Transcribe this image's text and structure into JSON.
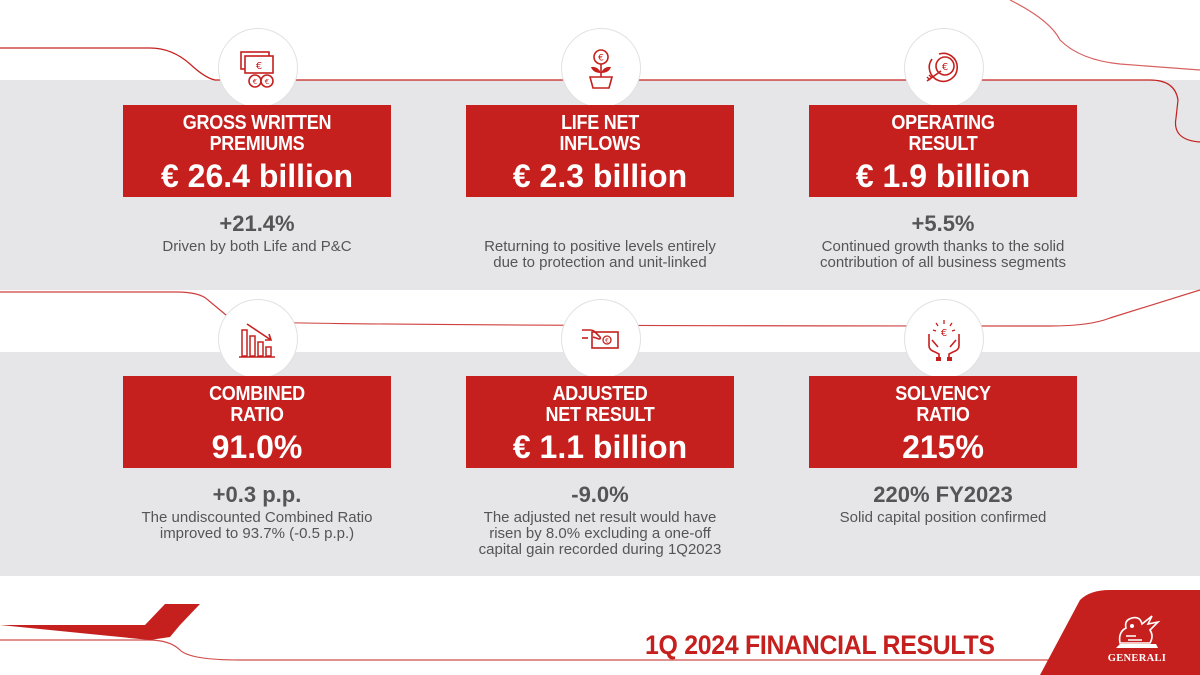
{
  "cards": [
    {
      "title": "GROSS WRITTEN\nPREMIUMS",
      "value": "€ 26.4 billion",
      "change": "+21.4%",
      "description": "Driven by both Life and P&C",
      "icon": "money-bills-coins-icon"
    },
    {
      "title": "LIFE NET\nINFLOWS",
      "value": "€ 2.3 billion",
      "change": "",
      "description": "Returning to positive levels entirely\ndue to protection and unit-linked",
      "icon": "euro-plant-pot-icon"
    },
    {
      "title": "OPERATING\nRESULT",
      "value": "€ 1.9 billion",
      "change": "+5.5%",
      "description": "Continued growth thanks to the solid\ncontribution of all business segments",
      "icon": "euro-target-arrow-icon"
    },
    {
      "title": "COMBINED\nRATIO",
      "value": "91.0%",
      "change": "+0.3 p.p.",
      "description": "The undiscounted Combined Ratio\nimproved to 93.7% (-0.5 p.p.)",
      "icon": "declining-bar-chart-icon"
    },
    {
      "title": "ADJUSTED\nNET RESULT",
      "value": "€ 1.1 billion",
      "change": "-9.0%",
      "description": "The adjusted net result would have\nrisen by 8.0% excluding a one-off\ncapital gain recorded during 1Q2023",
      "icon": "hand-euro-bill-icon"
    },
    {
      "title": "SOLVENCY\nRATIO",
      "value": "215%",
      "change": "220% FY2023",
      "description": "Solid capital position confirmed",
      "icon": "hands-protecting-euro-icon"
    }
  ],
  "footer": {
    "title": "1Q 2024 FINANCIAL RESULTS",
    "brand": "GENERALI"
  },
  "colors": {
    "accent": "#c5201e",
    "band": "#e6e6e8",
    "text": "#555555"
  }
}
